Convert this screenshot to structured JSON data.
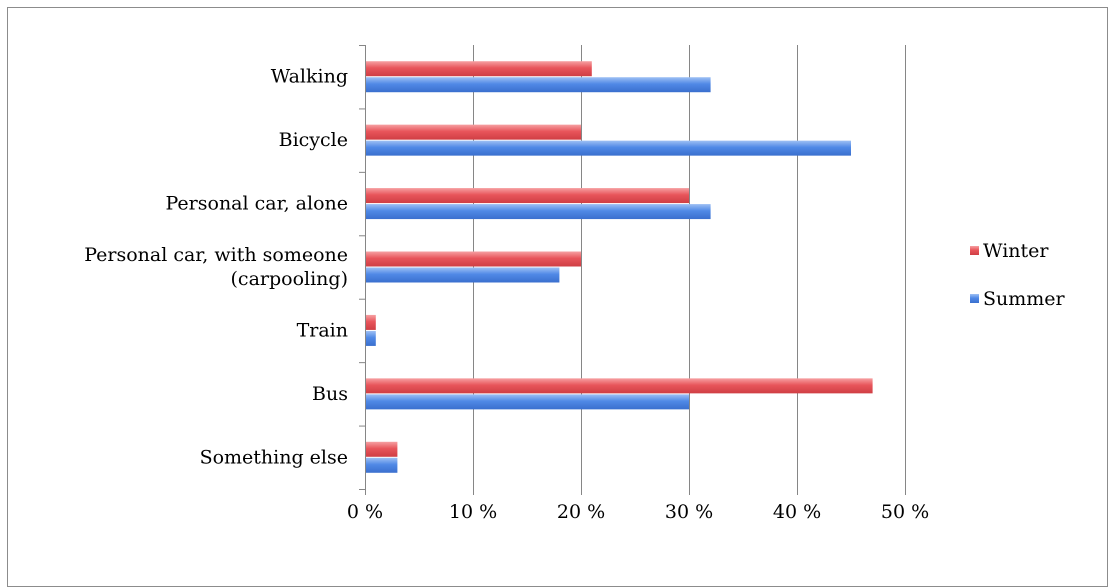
{
  "chart_data": {
    "type": "bar",
    "orientation": "horizontal",
    "title": "",
    "xlabel": "",
    "ylabel": "",
    "categories": [
      "Walking",
      "Bicycle",
      "Personal car, alone",
      "Personal car, with someone (carpooling)",
      "Train",
      "Bus",
      "Something else"
    ],
    "category_lines": [
      [
        "Walking"
      ],
      [
        "Bicycle"
      ],
      [
        "Personal car, alone"
      ],
      [
        "Personal car, with someone",
        "(carpooling)"
      ],
      [
        "Train"
      ],
      [
        "Bus"
      ],
      [
        "Something else"
      ]
    ],
    "series": [
      {
        "name": "Winter",
        "color": "#e8535a",
        "values": [
          21,
          20,
          30,
          20,
          1,
          47,
          3
        ]
      },
      {
        "name": "Summer",
        "color": "#4f86e6",
        "values": [
          32,
          45,
          32,
          18,
          1,
          30,
          3
        ]
      }
    ],
    "xlim": [
      0,
      50
    ],
    "xticks": [
      0,
      10,
      20,
      30,
      40,
      50
    ],
    "xtick_labels": [
      "0 %",
      "10 %",
      "20 %",
      "30 %",
      "40 %",
      "50 %"
    ],
    "grid": true,
    "legend": {
      "position": "right",
      "order": [
        "Winter",
        "Summer"
      ]
    }
  }
}
